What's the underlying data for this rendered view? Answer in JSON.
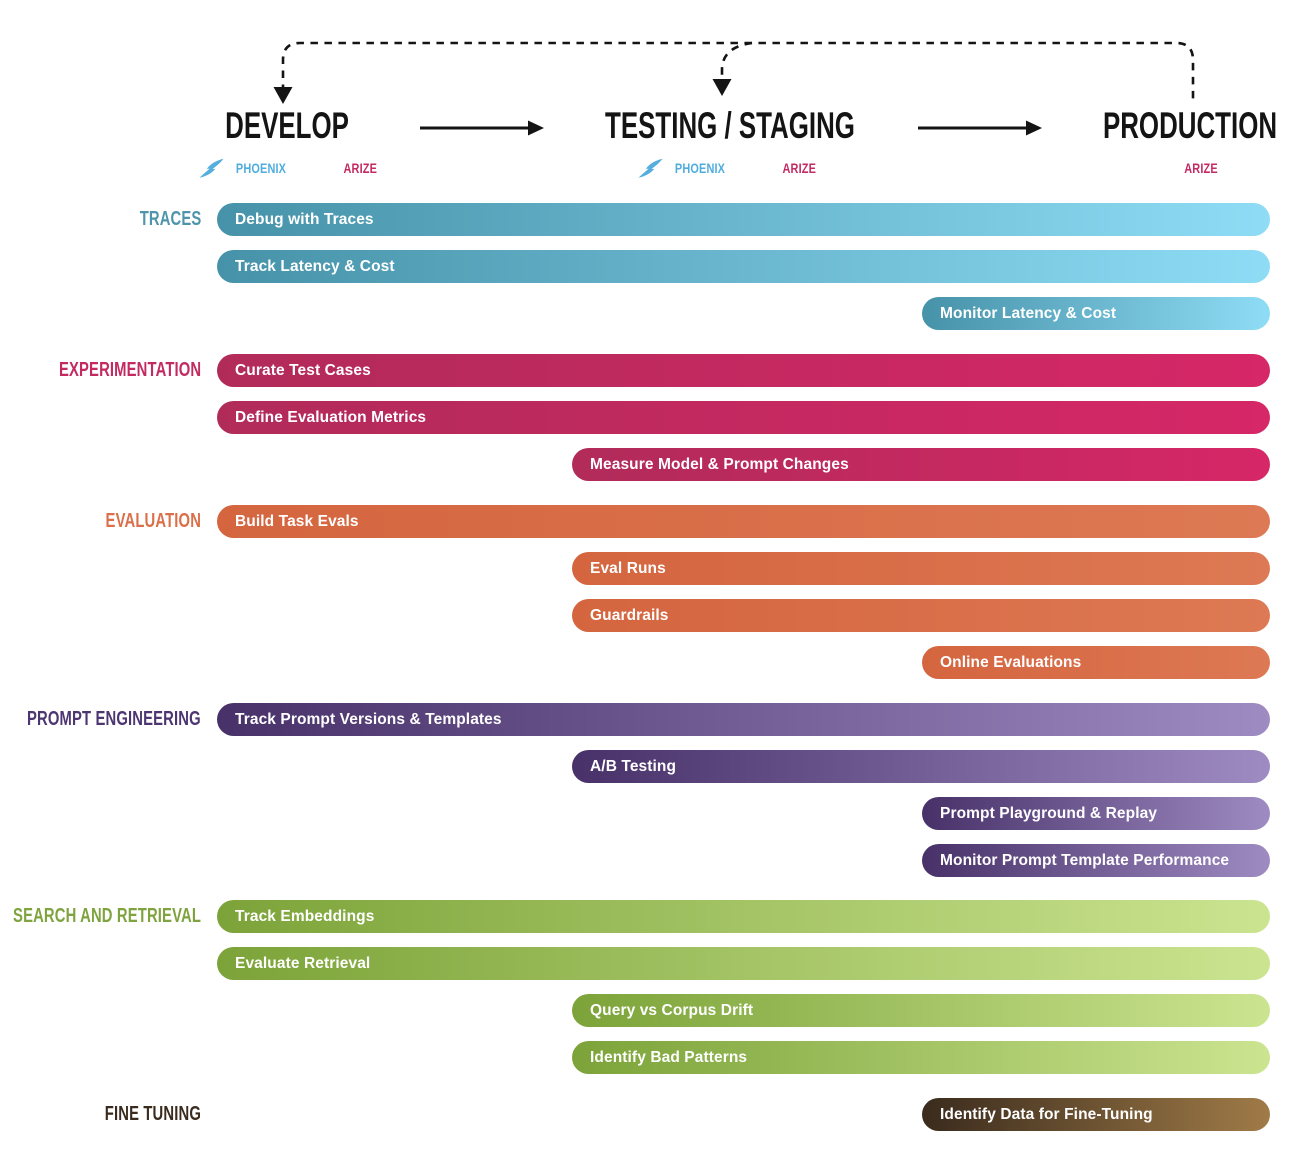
{
  "title_row": {
    "stages": [
      {
        "id": "develop",
        "label": "DEVELOP",
        "show_phoenix": true,
        "show_arize": true
      },
      {
        "id": "testing",
        "label": "TESTING / STAGING",
        "show_phoenix": true,
        "show_arize": true
      },
      {
        "id": "production",
        "label": "PRODUCTION",
        "show_phoenix": false,
        "show_arize": true
      }
    ],
    "phoenix_label": "PHOENIX",
    "arize_label": "ARIZE"
  },
  "colors": {
    "phoenix_blue": "#4fadde",
    "arize_magenta": "#c32a61",
    "arrow_black": "#141414"
  },
  "categories": [
    {
      "id": "traces",
      "label": "TRACES",
      "label_color": "#4e95ab",
      "gradient_from": "#4692a9",
      "gradient_to": "#8edcf5",
      "bars": [
        {
          "label": "Debug with Traces",
          "start": "develop"
        },
        {
          "label": "Track Latency & Cost",
          "start": "develop"
        },
        {
          "label": "Monitor Latency & Cost",
          "start": "production"
        }
      ]
    },
    {
      "id": "experimentation",
      "label": "EXPERIMENTATION",
      "label_color": "#c22a60",
      "gradient_from": "#b12b59",
      "gradient_to": "#d62767",
      "bars": [
        {
          "label": "Curate Test Cases",
          "start": "develop"
        },
        {
          "label": "Define Evaluation Metrics",
          "start": "develop"
        },
        {
          "label": "Measure Model & Prompt Changes",
          "start": "testing"
        }
      ]
    },
    {
      "id": "evaluation",
      "label": "EVALUATION",
      "label_color": "#db6f4a",
      "gradient_from": "#d4653f",
      "gradient_to": "#dd7954",
      "bars": [
        {
          "label": "Build Task Evals",
          "start": "develop"
        },
        {
          "label": "Eval Runs",
          "start": "testing"
        },
        {
          "label": "Guardrails",
          "start": "testing"
        },
        {
          "label": "Online Evaluations",
          "start": "production"
        }
      ]
    },
    {
      "id": "prompt-engineering",
      "label": "PROMPT ENGINEERING",
      "label_color": "#4d3572",
      "gradient_from": "#483169",
      "gradient_to": "#9e8bc2",
      "bars": [
        {
          "label": "Track Prompt Versions & Templates",
          "start": "develop"
        },
        {
          "label": "A/B Testing",
          "start": "testing"
        },
        {
          "label": "Prompt Playground & Replay",
          "start": "production"
        },
        {
          "label": "Monitor Prompt Template Performance",
          "start": "production"
        }
      ]
    },
    {
      "id": "search-and-retrieval",
      "label": "SEARCH AND RETRIEVAL",
      "label_color": "#7fa33f",
      "gradient_from": "#7ca339",
      "gradient_to": "#cbe490",
      "bars": [
        {
          "label": "Track Embeddings",
          "start": "develop"
        },
        {
          "label": "Evaluate Retrieval",
          "start": "develop"
        },
        {
          "label": "Query vs Corpus Drift",
          "start": "testing"
        },
        {
          "label": "Identify Bad Patterns",
          "start": "testing"
        }
      ]
    },
    {
      "id": "fine-tuning",
      "label": "FINE TUNING",
      "label_color": "#3a2b1e",
      "gradient_from": "#3a2b1d",
      "gradient_to": "#a07b47",
      "bars": [
        {
          "label": "Identify Data for Fine-Tuning",
          "start": "production"
        }
      ]
    }
  ]
}
